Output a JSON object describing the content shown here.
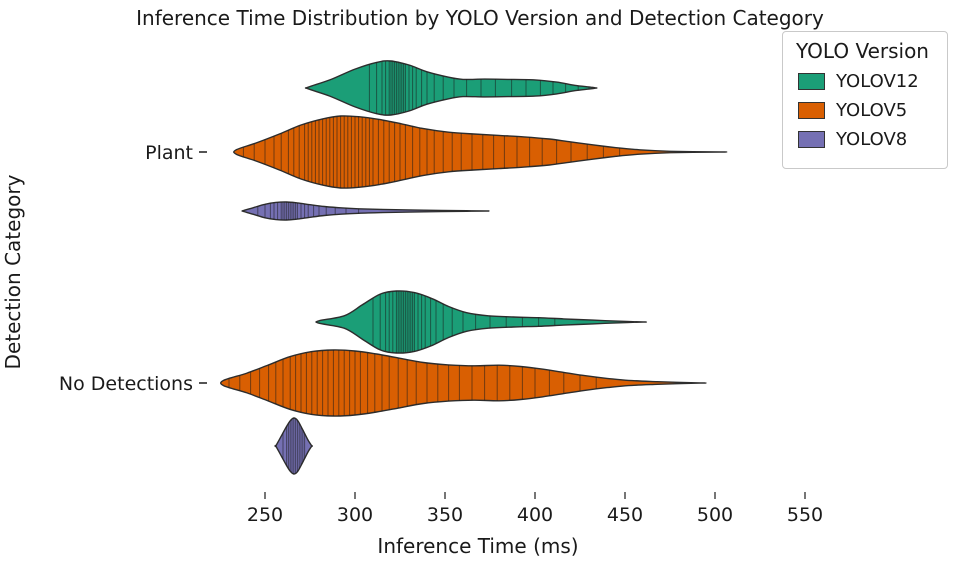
{
  "chart_data": {
    "type": "violin",
    "title": "Inference Time Distribution by YOLO Version and Detection Category",
    "xlabel": "Inference Time (ms)",
    "ylabel": "Detection Category",
    "legend_title": "YOLO Version",
    "legend_position": "upper right",
    "inner": "stick",
    "grid": false,
    "categories": [
      "Plant",
      "No Detections"
    ],
    "x_ticks": [
      250,
      300,
      350,
      400,
      450,
      500,
      550
    ],
    "xlim": [
      220,
      580
    ],
    "series": [
      {
        "name": "YOLOV12",
        "color": "#1b9e77"
      },
      {
        "name": "YOLOV5",
        "color": "#d95f02"
      },
      {
        "name": "YOLOV8",
        "color": "#7570b3"
      }
    ],
    "violins": [
      {
        "series": "YOLOV12",
        "category": "Plant",
        "range_ms": [
          274,
          434
        ],
        "peak_ms": 320,
        "profile": [
          [
            274,
            0.03
          ],
          [
            286,
            0.3
          ],
          [
            300,
            0.7
          ],
          [
            312,
            0.95
          ],
          [
            320,
            1.0
          ],
          [
            330,
            0.85
          ],
          [
            340,
            0.6
          ],
          [
            352,
            0.4
          ],
          [
            360,
            0.32
          ],
          [
            372,
            0.33
          ],
          [
            385,
            0.32
          ],
          [
            400,
            0.3
          ],
          [
            412,
            0.22
          ],
          [
            422,
            0.1
          ],
          [
            431,
            0.03
          ],
          [
            434,
            0.0
          ]
        ],
        "observations": [
          308,
          312,
          315,
          317,
          319,
          320,
          321,
          322,
          323,
          324,
          325,
          326,
          327,
          328,
          330,
          332,
          334,
          337,
          340,
          344,
          349,
          355,
          362,
          370,
          378,
          387,
          395,
          403,
          410,
          417,
          424,
          430
        ]
      },
      {
        "series": "YOLOV5",
        "category": "Plant",
        "range_ms": [
          234,
          503
        ],
        "peak_ms": 292,
        "profile": [
          [
            234,
            0.06
          ],
          [
            245,
            0.25
          ],
          [
            258,
            0.5
          ],
          [
            270,
            0.75
          ],
          [
            282,
            0.92
          ],
          [
            292,
            1.0
          ],
          [
            302,
            0.98
          ],
          [
            314,
            0.9
          ],
          [
            326,
            0.78
          ],
          [
            338,
            0.65
          ],
          [
            352,
            0.55
          ],
          [
            366,
            0.5
          ],
          [
            380,
            0.46
          ],
          [
            394,
            0.42
          ],
          [
            408,
            0.36
          ],
          [
            420,
            0.28
          ],
          [
            432,
            0.2
          ],
          [
            445,
            0.12
          ],
          [
            458,
            0.06
          ],
          [
            475,
            0.02
          ],
          [
            503,
            0.0
          ]
        ],
        "observations": [
          238,
          244,
          250,
          255,
          259,
          263,
          266,
          269,
          272,
          274,
          276,
          278,
          280,
          282,
          284,
          286,
          288,
          290,
          292,
          294,
          296,
          298,
          300,
          302,
          304,
          306,
          308,
          310,
          313,
          316,
          319,
          322,
          325,
          328,
          332,
          336,
          340,
          344,
          349,
          354,
          359,
          365,
          371,
          377,
          383,
          390,
          397,
          404,
          412,
          420,
          429,
          438,
          447
        ]
      },
      {
        "series": "YOLOV8",
        "category": "Plant",
        "range_ms": [
          238,
          373
        ],
        "peak_ms": 262,
        "profile": [
          [
            238,
            0.05
          ],
          [
            244,
            0.4
          ],
          [
            250,
            0.75
          ],
          [
            256,
            0.95
          ],
          [
            262,
            1.0
          ],
          [
            268,
            0.9
          ],
          [
            275,
            0.7
          ],
          [
            283,
            0.5
          ],
          [
            292,
            0.35
          ],
          [
            302,
            0.25
          ],
          [
            315,
            0.18
          ],
          [
            330,
            0.12
          ],
          [
            348,
            0.07
          ],
          [
            362,
            0.03
          ],
          [
            373,
            0.0
          ]
        ],
        "observations": [
          246,
          250,
          253,
          255,
          257,
          259,
          260,
          261,
          262,
          263,
          264,
          265,
          266,
          267,
          268,
          270,
          272,
          274,
          277,
          280,
          284,
          289,
          295,
          302
        ]
      },
      {
        "series": "YOLOV12",
        "category": "No Detections",
        "range_ms": [
          280,
          460
        ],
        "peak_ms": 323,
        "profile": [
          [
            280,
            0.04
          ],
          [
            294,
            0.2
          ],
          [
            304,
            0.55
          ],
          [
            314,
            0.9
          ],
          [
            323,
            1.0
          ],
          [
            333,
            0.95
          ],
          [
            343,
            0.75
          ],
          [
            352,
            0.5
          ],
          [
            362,
            0.3
          ],
          [
            374,
            0.2
          ],
          [
            388,
            0.16
          ],
          [
            402,
            0.14
          ],
          [
            416,
            0.1
          ],
          [
            432,
            0.06
          ],
          [
            445,
            0.03
          ],
          [
            460,
            0.0
          ]
        ],
        "observations": [
          310,
          314,
          317,
          319,
          321,
          323,
          324,
          325,
          326,
          327,
          328,
          329,
          330,
          331,
          332,
          333,
          335,
          337,
          339,
          342,
          345,
          349,
          354,
          360,
          367,
          375,
          384,
          393,
          402,
          411
        ]
      },
      {
        "series": "YOLOV5",
        "category": "No Detections",
        "range_ms": [
          227,
          492
        ],
        "peak_ms": 288,
        "profile": [
          [
            227,
            0.08
          ],
          [
            240,
            0.3
          ],
          [
            252,
            0.55
          ],
          [
            264,
            0.8
          ],
          [
            276,
            0.95
          ],
          [
            288,
            1.0
          ],
          [
            300,
            0.97
          ],
          [
            312,
            0.88
          ],
          [
            325,
            0.75
          ],
          [
            338,
            0.62
          ],
          [
            352,
            0.55
          ],
          [
            366,
            0.52
          ],
          [
            380,
            0.54
          ],
          [
            392,
            0.5
          ],
          [
            404,
            0.42
          ],
          [
            416,
            0.32
          ],
          [
            428,
            0.22
          ],
          [
            440,
            0.14
          ],
          [
            452,
            0.08
          ],
          [
            468,
            0.04
          ],
          [
            492,
            0.0
          ]
        ],
        "observations": [
          230,
          236,
          242,
          247,
          252,
          256,
          260,
          264,
          267,
          270,
          273,
          276,
          279,
          282,
          285,
          288,
          291,
          294,
          297,
          300,
          303,
          307,
          311,
          315,
          319,
          324,
          329,
          334,
          340,
          346,
          352,
          358,
          365,
          372,
          379,
          386,
          393,
          400,
          408,
          416,
          425,
          434
        ]
      },
      {
        "series": "YOLOV8",
        "category": "No Detections",
        "range_ms": [
          256,
          276
        ],
        "peak_ms": 266,
        "profile": [
          [
            256,
            0.0
          ],
          [
            259,
            0.35
          ],
          [
            262,
            0.7
          ],
          [
            264,
            0.9
          ],
          [
            266,
            1.0
          ],
          [
            268,
            0.92
          ],
          [
            270,
            0.7
          ],
          [
            272,
            0.45
          ],
          [
            274,
            0.2
          ],
          [
            276,
            0.0
          ]
        ],
        "observations": [
          260,
          262,
          263,
          264,
          265,
          266,
          267,
          268,
          269,
          270,
          271,
          272
        ]
      }
    ]
  }
}
